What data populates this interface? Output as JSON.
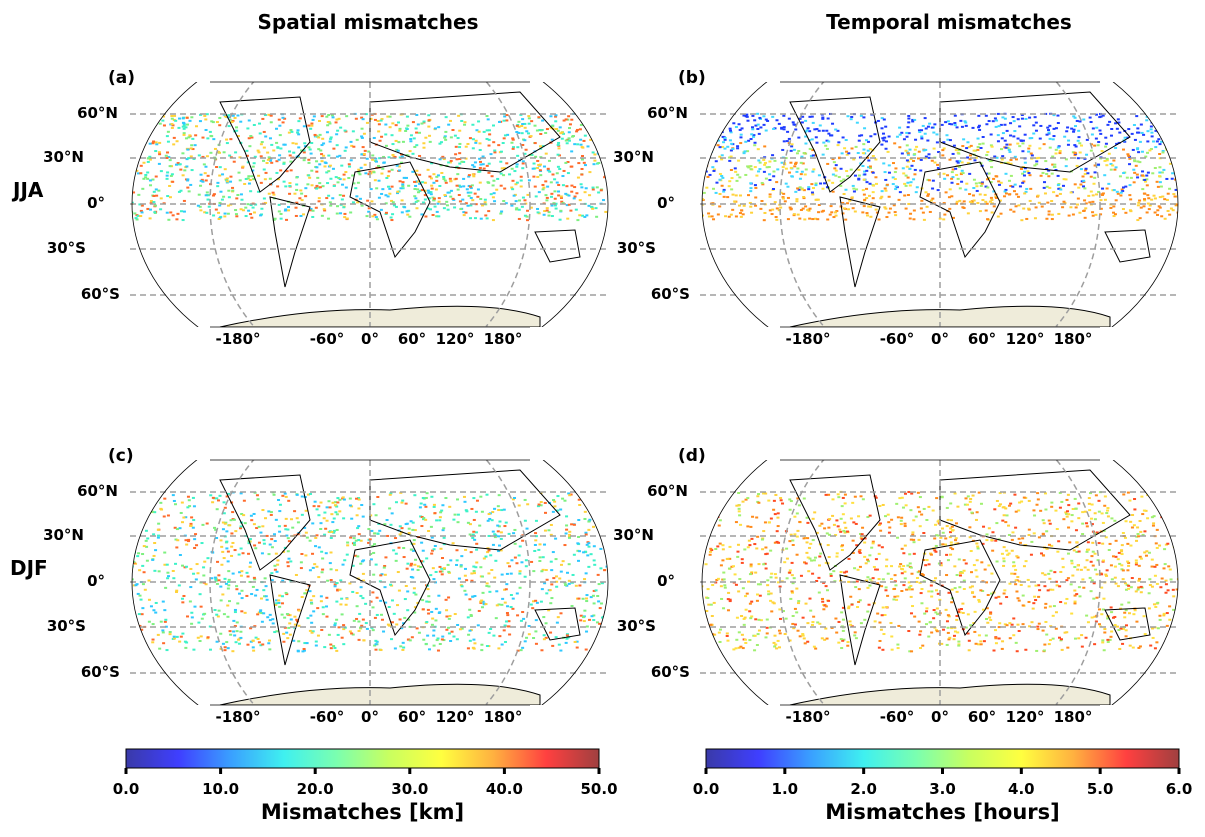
{
  "columns": [
    {
      "title": "Spatial mismatches"
    },
    {
      "title": "Temporal mismatches"
    }
  ],
  "rows": [
    {
      "label": "JJA"
    },
    {
      "label": "DJF"
    }
  ],
  "panels": [
    {
      "label": "(a)",
      "col": 0,
      "row": 0,
      "season": "JJA",
      "band": [
        "60°N",
        "10°S"
      ],
      "palette": [
        "#2ec8ff",
        "#7df07f",
        "#ffd23a",
        "#ff6a2a",
        "#3cf2c8"
      ]
    },
    {
      "label": "(b)",
      "col": 1,
      "row": 0,
      "season": "JJA",
      "band": [
        "60°N",
        "10°S"
      ],
      "palette": [
        "#1f3cff",
        "#3fd8ff",
        "#9ff070",
        "#ffe040",
        "#ff8a1a"
      ]
    },
    {
      "label": "(c)",
      "col": 0,
      "row": 1,
      "season": "DJF",
      "band": [
        "60°N",
        "45°S"
      ],
      "palette": [
        "#2ec8ff",
        "#7df07f",
        "#ffd23a",
        "#ff6a2a",
        "#3cf2c8"
      ]
    },
    {
      "label": "(d)",
      "col": 1,
      "row": 1,
      "season": "DJF",
      "band": [
        "60°N",
        "45°S"
      ],
      "palette": [
        "#ffd23a",
        "#ffe040",
        "#ff8a1a",
        "#ff4a20",
        "#9ff070"
      ]
    }
  ],
  "lat_labels": [
    "60°N",
    "30°N",
    "0°",
    "30°S",
    "60°S"
  ],
  "lon_labels": [
    "-180°",
    "-60°",
    "0°",
    "60°",
    "120°",
    "180°"
  ],
  "colorbars": [
    {
      "label": "Mismatches [km]",
      "ticks": [
        "0.0",
        "10.0",
        "20.0",
        "30.0",
        "40.0",
        "50.0"
      ],
      "range": [
        0,
        50
      ]
    },
    {
      "label": "Mismatches [hours]",
      "ticks": [
        "0.0",
        "1.0",
        "2.0",
        "3.0",
        "4.0",
        "5.0",
        "6.0"
      ],
      "range": [
        0,
        6
      ]
    }
  ],
  "colormap": [
    "#3a3aa8",
    "#3f3fff",
    "#3aa0ff",
    "#3ff0f0",
    "#7affb0",
    "#c8ff60",
    "#ffff40",
    "#ffb040",
    "#ff4040",
    "#a04040"
  ]
}
